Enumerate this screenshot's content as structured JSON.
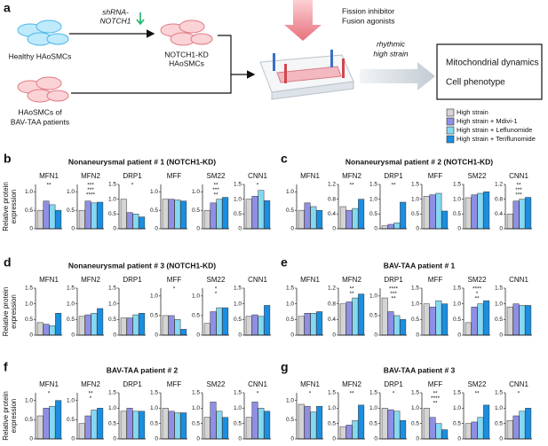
{
  "diagram": {
    "letter": "a",
    "healthy": "Healthy HAoSMCs",
    "shrna": [
      "shRNA-",
      "NOTCH1"
    ],
    "kd": [
      "NOTCH1-KD",
      "HAoSMCs"
    ],
    "patients": [
      "HAoSMCs of",
      "BAV-TAA patients"
    ],
    "drugs": [
      "Fission inhibitor",
      "Fusion agonists"
    ],
    "strain": [
      "rhythmic",
      "high strain"
    ],
    "outcomes": [
      "Mitochondrial dynamics",
      "Cell phenotype"
    ]
  },
  "legend": [
    {
      "name": "High strain",
      "color": "#d4d4d4"
    },
    {
      "name": "High strain + Mdivi-1",
      "color": "#8f8fe6"
    },
    {
      "name": "High strain + Leflunomide",
      "color": "#84d8f2"
    },
    {
      "name": "High strain + Teriflunomide",
      "color": "#1a8ee0"
    }
  ],
  "panels": [
    {
      "letter": "b",
      "title": "Nonaneurysmal patient # 1  (NOTCH1-KD)",
      "ylabel": [
        "Relative protein",
        "expression"
      ],
      "charts": [
        {
          "type": "bar",
          "name": "MFN1",
          "ylim": [
            0,
            1.2
          ],
          "yticks": [
            0,
            0.5,
            {
              "value": 1,
              "label": "1.0"
            }
          ],
          "values": [
            0.5,
            0.75,
            0.65,
            0.5
          ],
          "sig": [
            "**"
          ]
        },
        {
          "type": "bar",
          "name": "MFN2",
          "ylim": [
            0,
            1.2
          ],
          "yticks": [
            0,
            0.5,
            {
              "value": 1,
              "label": "1.0"
            }
          ],
          "values": [
            0.5,
            0.75,
            0.7,
            0.72
          ],
          "sig": [
            "***",
            "***",
            "****"
          ]
        },
        {
          "type": "bar",
          "name": "DRP1",
          "ylim": [
            0,
            1.5
          ],
          "yticks": [
            0,
            0.5,
            {
              "value": 1,
              "label": "1.0"
            },
            1.5
          ],
          "values": [
            1.0,
            0.55,
            0.5,
            0.4
          ],
          "sig": [
            "*"
          ]
        },
        {
          "type": "bar",
          "name": "MFF",
          "ylim": [
            0,
            1.2
          ],
          "yticks": [
            0,
            0.5,
            {
              "value": 1,
              "label": "1.0"
            }
          ],
          "values": [
            0.8,
            0.8,
            0.78,
            0.75
          ],
          "sig": []
        },
        {
          "type": "bar",
          "name": "SM22",
          "ylim": [
            0,
            1.2
          ],
          "yticks": [
            0,
            0.5,
            {
              "value": 1,
              "label": "1.0"
            }
          ],
          "values": [
            0.5,
            0.7,
            0.8,
            0.85
          ],
          "sig": [
            "**",
            "***",
            "**"
          ]
        },
        {
          "type": "bar",
          "name": "CNN1",
          "ylim": [
            0,
            1.5
          ],
          "yticks": [
            0,
            0.5,
            {
              "value": 1,
              "label": "1.0"
            },
            1.5
          ],
          "values": [
            1.0,
            1.1,
            1.3,
            0.95
          ],
          "sig": [
            "*"
          ]
        }
      ]
    },
    {
      "letter": "c",
      "title": "Nonaneurysmal patient # 2  (NOTCH1-KD)",
      "charts": [
        {
          "type": "bar",
          "name": "MFN1",
          "ylim": [
            0,
            1.2
          ],
          "yticks": [
            0,
            0.5,
            {
              "value": 1,
              "label": "1.0"
            }
          ],
          "values": [
            0.5,
            0.7,
            0.6,
            0.5
          ],
          "sig": []
        },
        {
          "type": "bar",
          "name": "MFN2",
          "ylim": [
            0,
            1.2
          ],
          "yticks": [
            0,
            0.4,
            0.8,
            1.2
          ],
          "values": [
            0.6,
            0.5,
            0.55,
            0.8
          ],
          "sig": [
            "**"
          ]
        },
        {
          "type": "bar",
          "name": "DRP1",
          "ylim": [
            0,
            1.5
          ],
          "yticks": [
            0,
            0.5,
            {
              "value": 1,
              "label": "1.0"
            },
            1.5
          ],
          "values": [
            0.1,
            0.15,
            0.2,
            0.9
          ],
          "sig": [
            "**"
          ]
        },
        {
          "type": "bar",
          "name": "MFF",
          "ylim": [
            0,
            1.5
          ],
          "yticks": [
            0,
            0.5,
            {
              "value": 1,
              "label": "1.0"
            },
            1.5
          ],
          "values": [
            1.1,
            1.15,
            1.2,
            0.6
          ],
          "sig": []
        },
        {
          "type": "bar",
          "name": "SM22",
          "ylim": [
            0,
            1.5
          ],
          "yticks": [
            0,
            0.5,
            {
              "value": 1,
              "label": "1.0"
            },
            1.5
          ],
          "values": [
            1.05,
            1.15,
            1.2,
            1.25
          ],
          "sig": []
        },
        {
          "type": "bar",
          "name": "CNN1",
          "ylim": [
            0,
            1.2
          ],
          "yticks": [
            0,
            0.4,
            0.8,
            1.2
          ],
          "values": [
            0.4,
            0.75,
            0.8,
            0.85
          ],
          "sig": [
            "**",
            "***",
            "***"
          ]
        }
      ]
    },
    {
      "letter": "d",
      "title": "Nonaneurysmal  patient # 3  (NOTCH1-KD)",
      "ylabel": [
        "Relative protein",
        "expression"
      ],
      "charts": [
        {
          "type": "bar",
          "name": "MFN1",
          "ylim": [
            0,
            1.5
          ],
          "yticks": [
            0,
            0.5,
            {
              "value": 1,
              "label": "1.0"
            },
            1.5
          ],
          "values": [
            0.4,
            0.35,
            0.3,
            0.7
          ],
          "sig": []
        },
        {
          "type": "bar",
          "name": "MFN2",
          "ylim": [
            0,
            1.5
          ],
          "yticks": [
            0,
            0.5,
            {
              "value": 1,
              "label": "1.0"
            },
            1.5
          ],
          "values": [
            0.6,
            0.65,
            0.7,
            0.85
          ],
          "sig": []
        },
        {
          "type": "bar",
          "name": "DRP1",
          "ylim": [
            0,
            1.5
          ],
          "yticks": [
            0,
            0.5,
            {
              "value": 1,
              "label": "1.0"
            },
            1.5
          ],
          "values": [
            0.55,
            0.55,
            0.65,
            0.7
          ],
          "sig": []
        },
        {
          "type": "bar",
          "name": "MFF",
          "ylim": [
            0,
            1.2
          ],
          "yticks": [
            0,
            0.5,
            {
              "value": 1,
              "label": "1.0"
            }
          ],
          "values": [
            0.5,
            0.5,
            0.4,
            0.15
          ],
          "sig": [
            "*"
          ]
        },
        {
          "type": "bar",
          "name": "SM22",
          "ylim": [
            0,
            1.2
          ],
          "yticks": [
            0,
            0.5,
            {
              "value": 1,
              "label": "1.0"
            }
          ],
          "values": [
            0.3,
            0.6,
            0.7,
            0.7
          ],
          "sig": [
            "*",
            "*"
          ]
        },
        {
          "type": "bar",
          "name": "CNN1",
          "ylim": [
            0,
            1.5
          ],
          "yticks": [
            0,
            0.5,
            {
              "value": 1,
              "label": "1.0"
            },
            1.5
          ],
          "values": [
            0.6,
            0.65,
            0.6,
            0.95
          ],
          "sig": []
        }
      ]
    },
    {
      "letter": "e",
      "title": "BAV-TAA patient # 1",
      "charts": [
        {
          "type": "bar",
          "name": "MFN1",
          "ylim": [
            0,
            1.5
          ],
          "yticks": [
            0,
            0.5,
            {
              "value": 1,
              "label": "1.0"
            },
            1.5
          ],
          "values": [
            0.6,
            0.7,
            0.7,
            0.75
          ],
          "sig": []
        },
        {
          "type": "bar",
          "name": "MFN2",
          "ylim": [
            0,
            1.2
          ],
          "yticks": [
            0,
            0.4,
            0.8,
            1.2
          ],
          "values": [
            0.8,
            0.85,
            0.95,
            1.05
          ],
          "sig": [
            "**",
            "**"
          ]
        },
        {
          "type": "bar",
          "name": "DRP1",
          "ylim": [
            0,
            1.2
          ],
          "yticks": [
            0,
            0.5,
            {
              "value": 1,
              "label": "1.0"
            }
          ],
          "values": [
            0.95,
            0.6,
            0.5,
            0.4
          ],
          "sig": [
            "****",
            "***",
            "**"
          ]
        },
        {
          "type": "bar",
          "name": "MFF",
          "ylim": [
            0,
            1.5
          ],
          "yticks": [
            0,
            0.5,
            {
              "value": 1,
              "label": "1.0"
            },
            1.5
          ],
          "values": [
            1.0,
            0.9,
            1.1,
            1.0
          ],
          "sig": []
        },
        {
          "type": "bar",
          "name": "SM22",
          "ylim": [
            0,
            1.5
          ],
          "yticks": [
            0,
            0.5,
            {
              "value": 1,
              "label": "1.0"
            },
            1.5
          ],
          "values": [
            0.4,
            0.9,
            1.0,
            1.1
          ],
          "sig": [
            "****",
            "*",
            "**"
          ]
        },
        {
          "type": "bar",
          "name": "CNN1",
          "ylim": [
            0,
            1.5
          ],
          "yticks": [
            0,
            0.5,
            {
              "value": 1,
              "label": "1.0"
            },
            1.5
          ],
          "values": [
            0.9,
            1.0,
            0.95,
            0.95
          ],
          "sig": []
        }
      ]
    },
    {
      "letter": "f",
      "title": "BAV-TAA patient # 2",
      "ylabel": [
        "Relative protein",
        "expression"
      ],
      "charts": [
        {
          "type": "bar",
          "name": "MFN1",
          "ylim": [
            0,
            1.2
          ],
          "yticks": [
            0,
            0.5,
            {
              "value": 1,
              "label": "1.0"
            }
          ],
          "values": [
            0.6,
            0.8,
            0.85,
            1.0
          ],
          "sig": [
            "*"
          ]
        },
        {
          "type": "bar",
          "name": "MFN2",
          "ylim": [
            0,
            1.2
          ],
          "yticks": [
            0,
            0.5,
            {
              "value": 1,
              "label": "1.0"
            }
          ],
          "values": [
            0.4,
            0.6,
            0.75,
            0.8
          ],
          "sig": [
            "**",
            "*"
          ]
        },
        {
          "type": "bar",
          "name": "DRP1",
          "ylim": [
            0,
            1.5
          ],
          "yticks": [
            0,
            0.5,
            {
              "value": 1,
              "label": "1.0"
            },
            1.5
          ],
          "values": [
            0.9,
            1.0,
            0.9,
            0.9
          ],
          "sig": []
        },
        {
          "type": "bar",
          "name": "MFF",
          "ylim": [
            0,
            1.5
          ],
          "yticks": [
            0,
            0.5,
            {
              "value": 1,
              "label": "1.0"
            },
            1.5
          ],
          "values": [
            1.0,
            0.9,
            0.85,
            0.85
          ],
          "sig": []
        },
        {
          "type": "bar",
          "name": "SM22",
          "ylim": [
            0,
            1.5
          ],
          "yticks": [
            0,
            0.5,
            {
              "value": 1,
              "label": "1.0"
            },
            1.5
          ],
          "values": [
            0.7,
            1.2,
            0.9,
            0.7
          ],
          "sig": []
        },
        {
          "type": "bar",
          "name": "CNN1",
          "ylim": [
            0,
            1.5
          ],
          "yticks": [
            0,
            0.5,
            {
              "value": 1,
              "label": "1.0"
            },
            1.5
          ],
          "values": [
            0.7,
            1.2,
            1.0,
            0.9
          ],
          "sig": [
            "*"
          ]
        }
      ]
    },
    {
      "letter": "g",
      "title": "BAV-TAA patient # 3",
      "charts": [
        {
          "type": "bar",
          "name": "MFN1",
          "ylim": [
            0,
            1.2
          ],
          "yticks": [
            0,
            0.5,
            {
              "value": 1,
              "label": "1.0"
            }
          ],
          "values": [
            0.9,
            0.85,
            0.7,
            0.85
          ],
          "sig": [
            "*"
          ]
        },
        {
          "type": "bar",
          "name": "MFN2",
          "ylim": [
            0,
            1.5
          ],
          "yticks": [
            0,
            0.5,
            {
              "value": 1,
              "label": "1.0"
            },
            1.5
          ],
          "values": [
            0.4,
            0.45,
            0.6,
            1.1
          ],
          "sig": [
            "**"
          ]
        },
        {
          "type": "bar",
          "name": "DRP1",
          "ylim": [
            0,
            1.5
          ],
          "yticks": [
            0,
            0.5,
            {
              "value": 1,
              "label": "1.0"
            },
            1.5
          ],
          "values": [
            1.0,
            0.95,
            0.9,
            0.6
          ],
          "sig": [
            "*"
          ]
        },
        {
          "type": "bar",
          "name": "MFF",
          "ylim": [
            0,
            1.5
          ],
          "yticks": [
            0,
            0.5,
            {
              "value": 1,
              "label": "1.0"
            },
            1.5
          ],
          "values": [
            1.0,
            0.7,
            0.5,
            0.3
          ],
          "sig": [
            "**",
            "****",
            "**"
          ]
        },
        {
          "type": "bar",
          "name": "SM22",
          "ylim": [
            0,
            1.5
          ],
          "yticks": [
            0,
            0.5,
            {
              "value": 1,
              "label": "1.0"
            },
            1.5
          ],
          "values": [
            0.5,
            0.55,
            0.7,
            1.1
          ],
          "sig": [
            "**"
          ]
        },
        {
          "type": "bar",
          "name": "CNN1",
          "ylim": [
            0,
            1.5
          ],
          "yticks": [
            0,
            0.5,
            {
              "value": 1,
              "label": "1.0"
            },
            1.5
          ],
          "values": [
            0.6,
            0.75,
            0.9,
            1.0
          ],
          "sig": [
            "*"
          ]
        }
      ]
    }
  ]
}
